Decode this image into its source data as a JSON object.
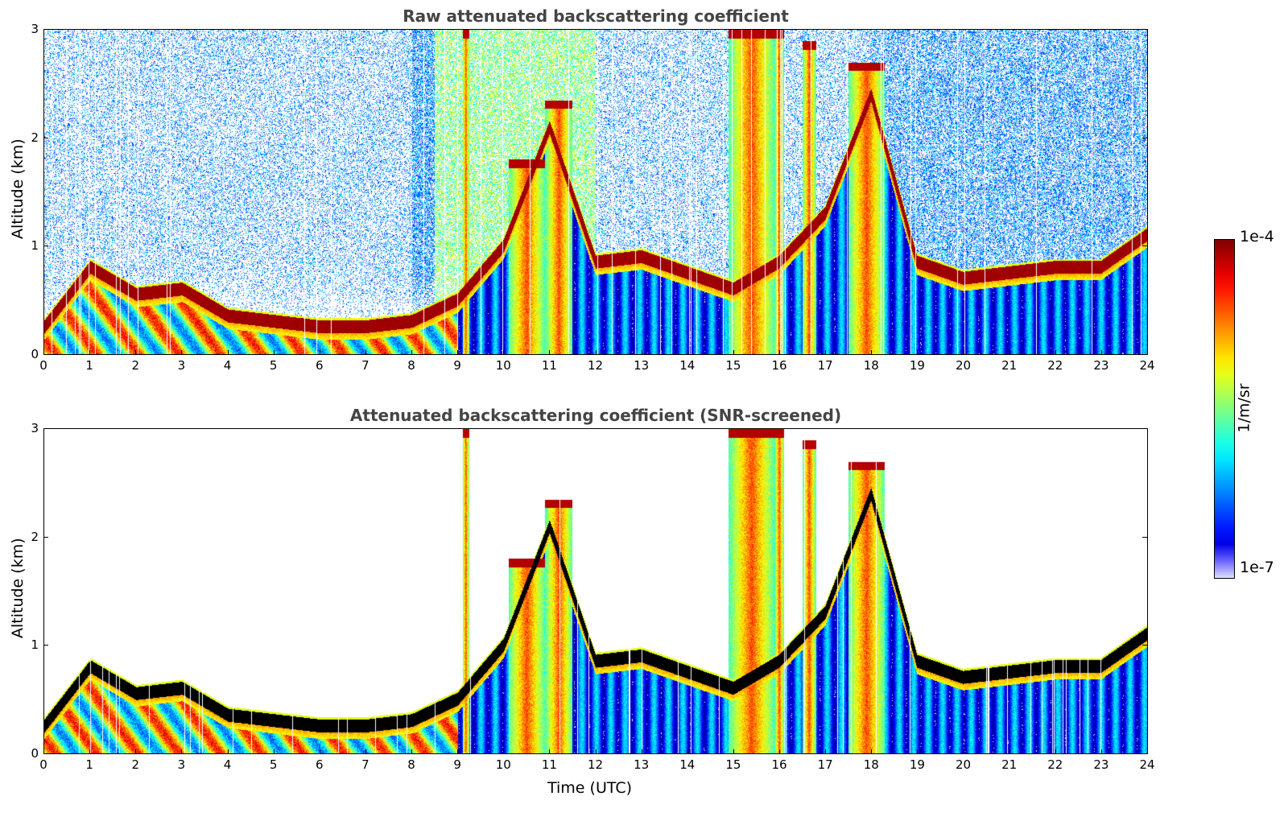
{
  "panels": [
    {
      "title": "Raw attenuated backscattering coefficient",
      "ylabel": "Altitude (km)"
    },
    {
      "title": "Attenuated backscattering coefficient (SNR-screened)",
      "ylabel": "Altitude (km)",
      "xlabel": "Time (UTC)"
    }
  ],
  "colorbar": {
    "max_label": "1e-4",
    "min_label": "1e-7",
    "units": "1/m/sr",
    "colormap": "jet"
  },
  "chart_data": [
    {
      "type": "heatmap",
      "title": "Raw attenuated backscattering coefficient",
      "xlabel": "",
      "ylabel": "Altitude (km)",
      "xlim": [
        0,
        24
      ],
      "ylim": [
        0,
        3
      ],
      "xticks": [
        "0",
        "1",
        "2",
        "3",
        "4",
        "5",
        "6",
        "7",
        "8",
        "9",
        "10",
        "11",
        "12",
        "13",
        "14",
        "15",
        "16",
        "17",
        "18",
        "19",
        "20",
        "21",
        "22",
        "23",
        "24"
      ],
      "yticks": [
        "0",
        "1",
        "2",
        "3"
      ],
      "color_range": [
        1e-07,
        0.0001
      ],
      "color_scale": "log",
      "cloud_base_layer_km": [
        {
          "t": 0,
          "alt": 0.25
        },
        {
          "t": 1,
          "alt": 0.8
        },
        {
          "t": 2,
          "alt": 0.55
        },
        {
          "t": 3,
          "alt": 0.6
        },
        {
          "t": 4,
          "alt": 0.35
        },
        {
          "t": 5,
          "alt": 0.3
        },
        {
          "t": 6,
          "alt": 0.25
        },
        {
          "t": 7,
          "alt": 0.25
        },
        {
          "t": 8,
          "alt": 0.3
        },
        {
          "t": 9,
          "alt": 0.5
        },
        {
          "t": 10,
          "alt": 1.0
        },
        {
          "t": 11,
          "alt": 2.1
        },
        {
          "t": 12,
          "alt": 0.85
        },
        {
          "t": 13,
          "alt": 0.9
        },
        {
          "t": 14,
          "alt": 0.75
        },
        {
          "t": 15,
          "alt": 0.6
        },
        {
          "t": 16,
          "alt": 0.85
        },
        {
          "t": 17,
          "alt": 1.3
        },
        {
          "t": 18,
          "alt": 2.4
        },
        {
          "t": 19,
          "alt": 0.85
        },
        {
          "t": 20,
          "alt": 0.7
        },
        {
          "t": 21,
          "alt": 0.75
        },
        {
          "t": 22,
          "alt": 0.8
        },
        {
          "t": 23,
          "alt": 0.8
        },
        {
          "t": 24,
          "alt": 1.1
        }
      ]
    },
    {
      "type": "heatmap",
      "title": "Attenuated backscattering coefficient (SNR-screened)",
      "xlabel": "Time (UTC)",
      "ylabel": "Altitude (km)",
      "xlim": [
        0,
        24
      ],
      "ylim": [
        0,
        3
      ],
      "xticks": [
        "0",
        "1",
        "2",
        "3",
        "4",
        "5",
        "6",
        "7",
        "8",
        "9",
        "10",
        "11",
        "12",
        "13",
        "14",
        "15",
        "16",
        "17",
        "18",
        "19",
        "20",
        "21",
        "22",
        "23",
        "24"
      ],
      "yticks": [
        "0",
        "1",
        "2",
        "3"
      ],
      "color_range": [
        1e-07,
        0.0001
      ],
      "color_scale": "log"
    }
  ]
}
